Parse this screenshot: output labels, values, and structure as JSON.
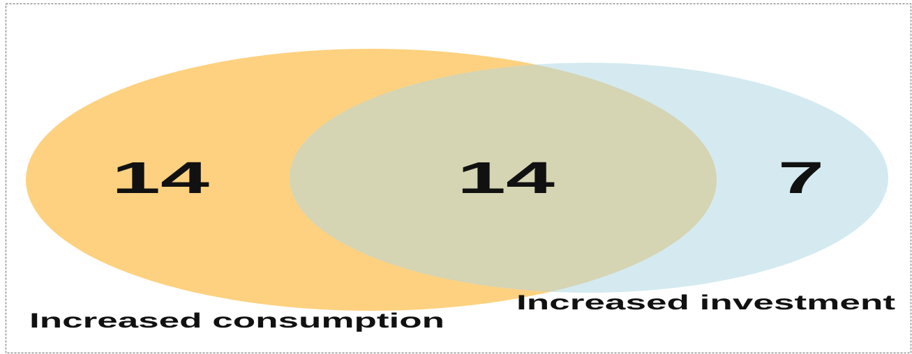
{
  "sets": [
    {
      "label": "Increased consumption",
      "only": 14
    },
    {
      "label": "Increased investment",
      "only": 7
    }
  ],
  "overlap": 14
}
